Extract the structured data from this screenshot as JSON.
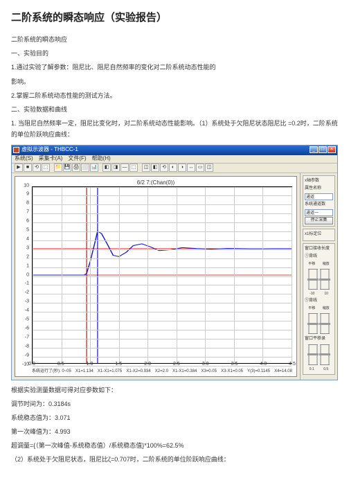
{
  "title": "二阶系统的瞬态响应（实验报告）",
  "intro": {
    "p1": "二阶系统的瞬态响应",
    "p2": "一、实验目的",
    "p3": "1.通过实验了解参数：阻尼比、阻尼自然频率的变化对二阶系统动态性能的",
    "p4": "影响。",
    "p5": "2.掌握二阶系统动态性能的测试方法。",
    "p6": "二、实验数据和曲线",
    "p7": "1. 当阻尼自然频率一定，阻尼比变化时，对二阶系统动态性能影响。（1）系统处于欠阻尼状态阻尼比 =0.2时，二阶系统的单位阶跃响应曲线："
  },
  "window": {
    "title": "虚拟示波器 - THBCC-1",
    "menu": [
      "系统(S)",
      "采集卡(A)",
      "文件(F)",
      "帮助(H)"
    ],
    "toolbar_icons": [
      "▶",
      "■",
      "⟲",
      "⬚",
      "📁",
      "💾",
      "🖨",
      "⬜",
      "📊",
      "◧",
      "◨",
      "—",
      "⬚",
      "◫",
      "◧",
      "⟲",
      "◐",
      "◑",
      "↔",
      "▭",
      "◫"
    ],
    "chart_title": "6/2 7:(Chan(0))",
    "y_axis": {
      "min": -10,
      "max": 10,
      "step": 1,
      "ticks": [
        10,
        9,
        8,
        7,
        6,
        5,
        4,
        3,
        2,
        1,
        0,
        -1,
        -2,
        -3,
        -4,
        -5,
        -6,
        -7,
        -8,
        -9,
        -10
      ]
    },
    "x_axis": {
      "min": 0,
      "max": 4.5,
      "step": 0.5,
      "ticks": [
        0,
        0.5,
        1.0,
        1.5,
        2.0,
        2.5,
        3.0,
        3.5,
        4.0,
        4.5
      ]
    },
    "status_items": [
      "系统运行了(秒): 0~05",
      "X1=1.134",
      "X1-X1=1.075",
      "X1-X2=0.934",
      "X2=2.0",
      "X1-X1=0.384",
      "X3=0.05",
      "X3-X1=0.05",
      "Y(3)=0.1145",
      "X4=14.08"
    ],
    "curve": {
      "type": "line",
      "color": "#1818c8",
      "width": 1.2,
      "ref_line_y": 3.0,
      "ref_line_color": "#cc0000",
      "cursor_x1": 0.94,
      "cursor_x2": 1.13,
      "cursor_color1": "#cc0000",
      "cursor_color2": "#0000cc",
      "points_x": [
        0,
        0.9,
        0.94,
        1.0,
        1.08,
        1.13,
        1.2,
        1.3,
        1.4,
        1.5,
        1.63,
        1.75,
        1.9,
        2.05,
        2.2,
        2.4,
        2.6,
        2.85,
        3.1,
        3.4,
        3.8,
        4.2,
        4.5
      ],
      "points_y": [
        0,
        0.0,
        0.2,
        1.5,
        3.6,
        4.99,
        4.7,
        3.5,
        2.25,
        2.1,
        2.6,
        3.35,
        3.55,
        3.2,
        2.78,
        2.88,
        3.12,
        3.02,
        2.95,
        3.03,
        2.99,
        3.0,
        3.0
      ]
    },
    "side": {
      "group1_title": "x轴参数",
      "axis_label": "属性名称",
      "axis_value": "通道",
      "prop_label": "系统通道数",
      "prop_value": "通道一",
      "btn_stop": "停止采集",
      "cursor_section": "x1标定位",
      "value_section": "窗口接收长度",
      "slider1_title": "①背线",
      "slider2_title": "①背线",
      "slider_left": "平移",
      "slider_right": "缩放",
      "slider3_title": "窗口平移录",
      "bottom_vals": [
        "0.1",
        "0.5",
        "0.1",
        "0.5"
      ],
      "scale_vals": [
        "-10",
        "10",
        "-10",
        "10"
      ]
    }
  },
  "results": {
    "r1": "根据实验测量数据可得对应参数如下：",
    "r2": "调节时间为：0.3184s",
    "r3": "系统稳态值为：3.071",
    "r4": "第一次峰值为：4.993",
    "r5": "超调量={（第一次峰值-系统稳态值）/系统稳态值}*100%=62.5%",
    "r6": "（2）系统处于欠阻尼状态，阻尼比ζ=0.707时，二阶系统的单位阶跃响应曲线："
  },
  "colors": {
    "grid": "#cccccc",
    "axis": "#000000",
    "bg": "#ffffff",
    "panel": "#ece9d8"
  }
}
